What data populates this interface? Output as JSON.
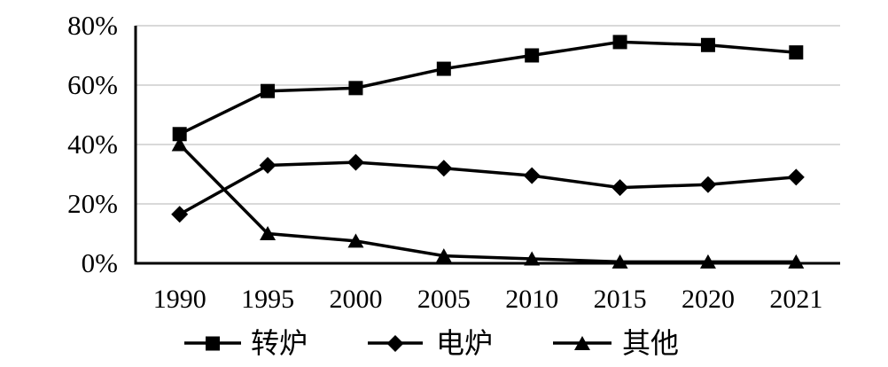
{
  "chart_data": {
    "type": "line",
    "title": "",
    "xlabel": "",
    "ylabel": "",
    "categories": [
      "1990",
      "1995",
      "2000",
      "2005",
      "2010",
      "2015",
      "2020",
      "2021"
    ],
    "series": [
      {
        "id": "converter-furnace",
        "name": "转炉",
        "marker": "square-icon",
        "values": [
          43.5,
          58,
          59,
          65.5,
          70,
          74.5,
          73.5,
          71
        ]
      },
      {
        "id": "electric-furnace",
        "name": "电炉",
        "marker": "diamond-icon",
        "values": [
          16.5,
          33,
          34,
          32,
          29.5,
          25.5,
          26.5,
          29
        ]
      },
      {
        "id": "other",
        "name": "其他",
        "marker": "triangle-icon",
        "values": [
          40,
          10,
          7.5,
          2.5,
          1.5,
          0.5,
          0.5,
          0.5
        ]
      }
    ],
    "y_ticks": [
      0,
      20,
      40,
      60,
      80
    ],
    "y_tick_labels": [
      "0%",
      "20%",
      "40%",
      "60%",
      "80%"
    ],
    "ylim": [
      0,
      80
    ],
    "unit": "percent",
    "grid": "horizontal",
    "legend_position": "bottom",
    "legend_labels": [
      "转炉",
      "电炉",
      "其他"
    ],
    "colors": {
      "series": "#000000",
      "grid": "#d9d9d9",
      "axis": "#000000",
      "background": "#ffffff",
      "text": "#000000"
    }
  }
}
